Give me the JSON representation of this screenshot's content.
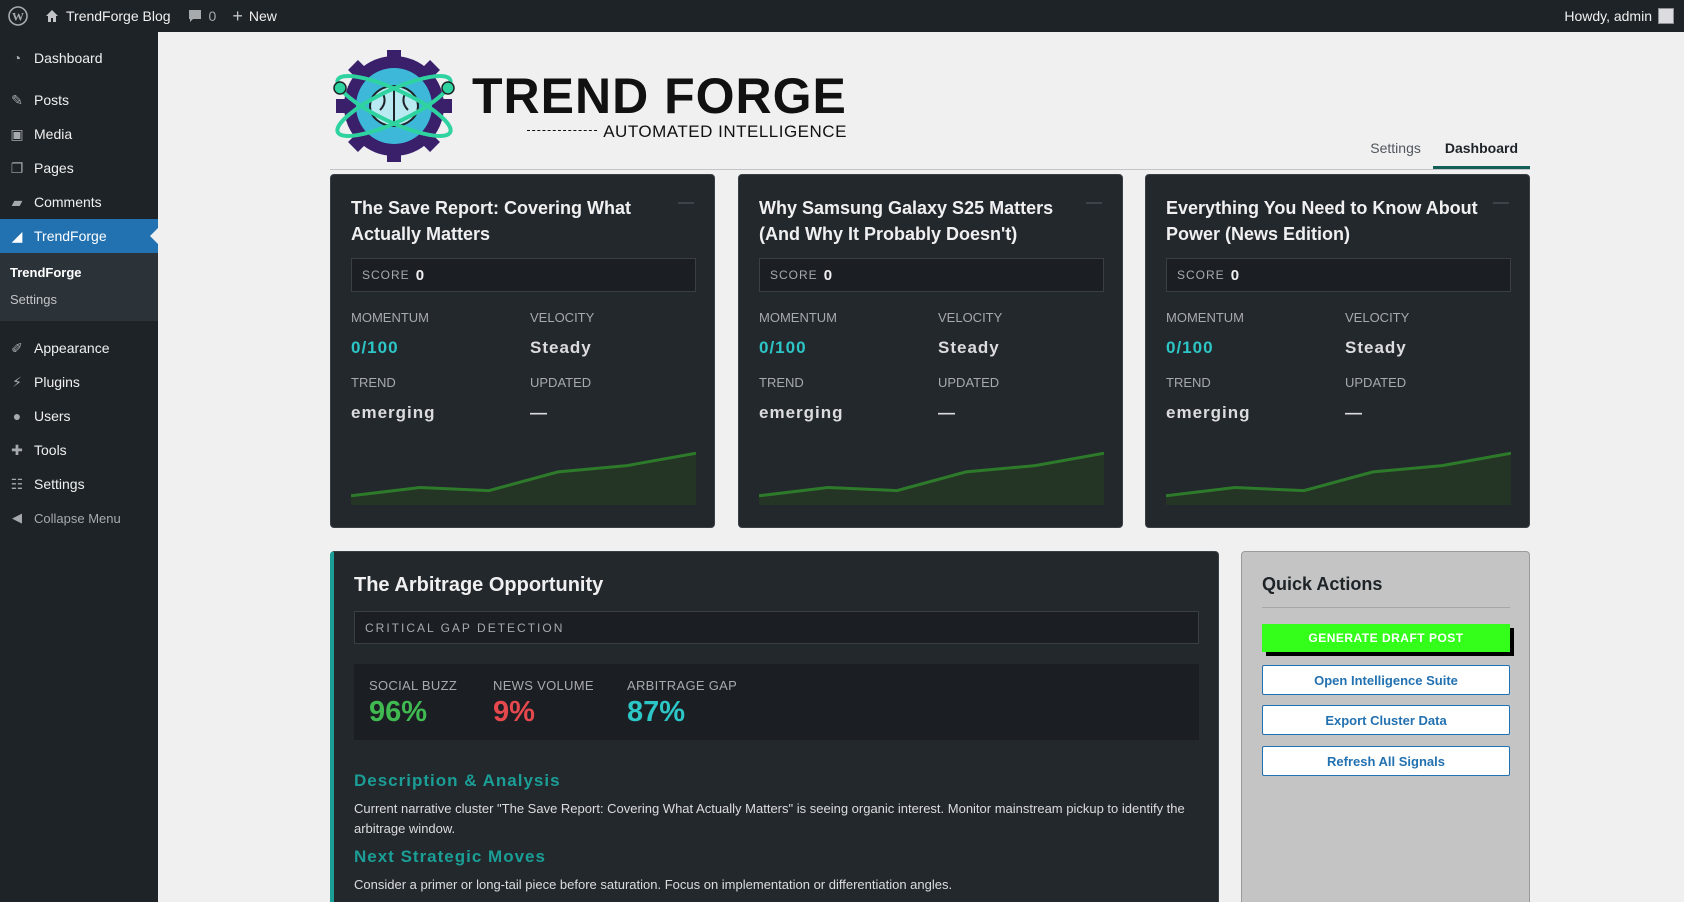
{
  "adminbar": {
    "site_name": "TrendForge Blog",
    "comments_count": "0",
    "new_label": "New",
    "howdy": "Howdy, admin"
  },
  "sidebar": {
    "items": [
      {
        "label": "Dashboard",
        "icon": "dashboard-icon"
      },
      {
        "label": "Posts",
        "icon": "pin-icon"
      },
      {
        "label": "Media",
        "icon": "media-icon"
      },
      {
        "label": "Pages",
        "icon": "pages-icon"
      },
      {
        "label": "Comments",
        "icon": "comment-icon"
      },
      {
        "label": "TrendForge",
        "icon": "chart-icon"
      },
      {
        "label": "Appearance",
        "icon": "brush-icon"
      },
      {
        "label": "Plugins",
        "icon": "plug-icon"
      },
      {
        "label": "Users",
        "icon": "user-icon"
      },
      {
        "label": "Tools",
        "icon": "wrench-icon"
      },
      {
        "label": "Settings",
        "icon": "sliders-icon"
      }
    ],
    "submenu": [
      "TrendForge",
      "Settings"
    ],
    "collapse_label": "Collapse Menu"
  },
  "header": {
    "logo_title": "TREND FORGE",
    "logo_subtitle": "AUTOMATED INTELLIGENCE",
    "tabs": [
      "Settings",
      "Dashboard"
    ]
  },
  "labels": {
    "score": "SCORE",
    "momentum": "MOMENTUM",
    "velocity": "VELOCITY",
    "trend": "TREND",
    "updated": "UPDATED"
  },
  "cards": [
    {
      "title": "The Save Report: Covering What Actually Matters",
      "score": "0",
      "momentum": "0/100",
      "velocity": "Steady",
      "trend": "emerging",
      "updated": "—"
    },
    {
      "title": "Why Samsung Galaxy S25 Matters (And Why It Probably Doesn't)",
      "score": "0",
      "momentum": "0/100",
      "velocity": "Steady",
      "trend": "emerging",
      "updated": "—"
    },
    {
      "title": "Everything You Need to Know About Power (News Edition)",
      "score": "0",
      "momentum": "0/100",
      "velocity": "Steady",
      "trend": "emerging",
      "updated": "—"
    }
  ],
  "sparkline": {
    "values": [
      5,
      13,
      10,
      28,
      34,
      46
    ],
    "max": 50,
    "color": "#2d7a2a"
  },
  "arbitrage": {
    "title": "The Arbitrage Opportunity",
    "gap_label": "CRITICAL GAP DETECTION",
    "stats": [
      {
        "label": "SOCIAL BUZZ",
        "value": "96%"
      },
      {
        "label": "NEWS VOLUME",
        "value": "9%"
      },
      {
        "label": "ARBITRAGE GAP",
        "value": "87%"
      }
    ],
    "desc_heading": "Description & Analysis",
    "desc_text": "Current narrative cluster \"The Save Report: Covering What Actually Matters\" is seeing organic interest. Monitor mainstream pickup to identify the arbitrage window.",
    "next_heading": "Next Strategic Moves",
    "next_text": "Consider a primer or long-tail piece before saturation. Focus on implementation or differentiation angles."
  },
  "quick_actions": {
    "title": "Quick Actions",
    "primary": "GENERATE DRAFT POST",
    "buttons": [
      "Open Intelligence Suite",
      "Export Cluster Data",
      "Refresh All Signals"
    ]
  },
  "colors": {
    "accent": "#2271b1",
    "teal": "#2dc6c6",
    "green_cta": "#34ff1a"
  }
}
